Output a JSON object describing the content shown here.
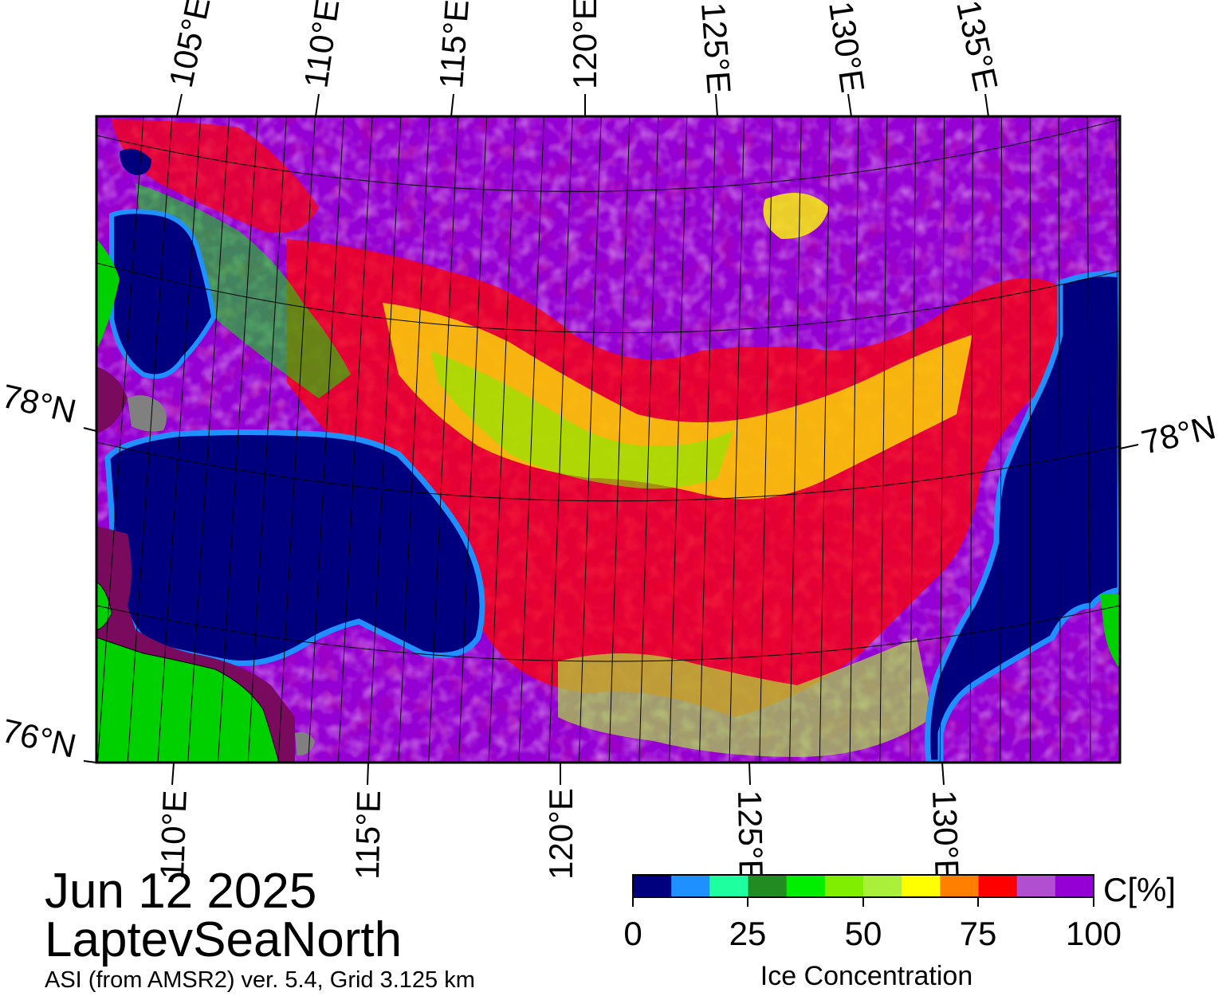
{
  "title": {
    "date": "Jun 12 2025",
    "region": "LaptevSeaNorth",
    "subtitle": "ASI (from AMSR2) ver. 5.4,  Grid 3.125 km"
  },
  "map": {
    "top_lon_labels": [
      "105°E",
      "110°E",
      "115°E",
      "120°E",
      "125°E",
      "130°E",
      "135°E"
    ],
    "bottom_lon_labels": [
      "110°E",
      "115°E",
      "120°E",
      "125°E",
      "130°E"
    ],
    "lat_labels": {
      "left_upper": "78°N",
      "right": "78°N",
      "left_lower": "76°N"
    },
    "colors": {
      "open_water": "#00007f",
      "land": "#00d000",
      "land_mask": "#808080",
      "coast_ice": "#7a0a5e"
    }
  },
  "colorbar": {
    "title": "Ice Concentration",
    "unit_label": "C[%]",
    "ticks": [
      "0",
      "25",
      "50",
      "75",
      "100"
    ],
    "colors": [
      "#00007f",
      "#1e90ff",
      "#1effa0",
      "#228b22",
      "#00ee00",
      "#7fee00",
      "#aaf03a",
      "#ffff00",
      "#ff7f00",
      "#ff0000",
      "#b050d0",
      "#9400d3"
    ]
  }
}
